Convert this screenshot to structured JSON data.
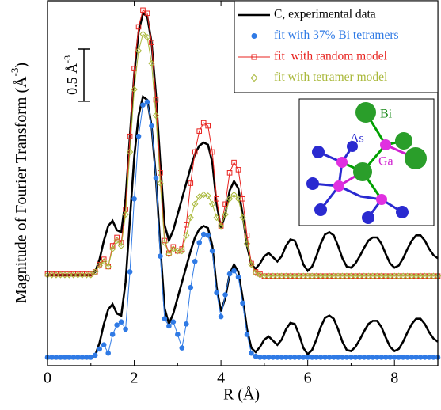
{
  "chart_data": {
    "type": "line",
    "xlabel": "R (Å)",
    "ylabel": "Magnitude of Fourier Transform (Å",
    "ylabel_sup": "-3",
    "ylabel_end": ")",
    "scale_bar_label": "0.5 Å",
    "scale_bar_label_sup": "-3",
    "scale_bar_length": 0.5,
    "xlim": [
      0,
      9
    ],
    "xticks": [
      0,
      2,
      4,
      6,
      8
    ],
    "xminor_ticks": [
      1,
      3,
      5,
      7
    ],
    "ylim": [
      0,
      3.5
    ],
    "legend": "upper right",
    "x": [
      0,
      0.1,
      0.2,
      0.3,
      0.4,
      0.5,
      0.6,
      0.7,
      0.8,
      0.9,
      1,
      1.1,
      1.2,
      1.3,
      1.4,
      1.5,
      1.6,
      1.7,
      1.8,
      1.9,
      2,
      2.1,
      2.2,
      2.3,
      2.4,
      2.5,
      2.6,
      2.7,
      2.8,
      2.9,
      3,
      3.1,
      3.2,
      3.3,
      3.4,
      3.5,
      3.6,
      3.7,
      3.8,
      3.9,
      4,
      4.1,
      4.2,
      4.3,
      4.4,
      4.5,
      4.6,
      4.7,
      4.8,
      4.9,
      5,
      5.1,
      5.2,
      5.3,
      5.4,
      5.5,
      5.6,
      5.7,
      5.8,
      5.9,
      6,
      6.1,
      6.2,
      6.3,
      6.4,
      6.5,
      6.6,
      6.7,
      6.8,
      6.9,
      7,
      7.1,
      7.2,
      7.3,
      7.4,
      7.5,
      7.6,
      7.7,
      7.8,
      7.9,
      8,
      8.1,
      8.2,
      8.3,
      8.4,
      8.5,
      8.6,
      8.7,
      8.8,
      8.9,
      9
    ],
    "series": [
      {
        "name": "C, experimental data",
        "color": "#000000",
        "marker": null,
        "values": [
          0.87,
          0.87,
          0.87,
          0.87,
          0.87,
          0.87,
          0.87,
          0.87,
          0.87,
          0.87,
          0.87,
          0.9,
          1.02,
          1.2,
          1.34,
          1.39,
          1.3,
          1.28,
          1.6,
          2.2,
          2.8,
          3.2,
          3.38,
          3.35,
          3.1,
          2.6,
          1.95,
          1.35,
          1.2,
          1.3,
          1.45,
          1.6,
          1.75,
          1.9,
          2.03,
          2.11,
          2.14,
          2.12,
          1.95,
          1.55,
          1.32,
          1.45,
          1.68,
          1.77,
          1.7,
          1.45,
          1.15,
          0.97,
          0.93,
          0.98,
          1.05,
          1.08,
          1.04,
          1.0,
          1.05,
          1.15,
          1.21,
          1.2,
          1.1,
          0.97,
          0.91,
          0.95,
          1.05,
          1.17,
          1.26,
          1.28,
          1.25,
          1.15,
          1.03,
          0.95,
          0.94,
          0.98,
          1.05,
          1.13,
          1.2,
          1.23,
          1.23,
          1.17,
          1.07,
          0.98,
          0.94,
          0.96,
          1.03,
          1.12,
          1.2,
          1.25,
          1.25,
          1.2,
          1.12,
          1.06,
          1.03
        ]
      },
      {
        "color": "#000000",
        "marker": null,
        "values": [
          0.07,
          0.07,
          0.07,
          0.07,
          0.07,
          0.07,
          0.07,
          0.07,
          0.07,
          0.07,
          0.07,
          0.1,
          0.22,
          0.4,
          0.54,
          0.59,
          0.5,
          0.48,
          0.8,
          1.4,
          2.0,
          2.4,
          2.58,
          2.55,
          2.3,
          1.8,
          1.15,
          0.55,
          0.4,
          0.5,
          0.65,
          0.8,
          0.95,
          1.1,
          1.23,
          1.31,
          1.34,
          1.32,
          1.15,
          0.75,
          0.52,
          0.65,
          0.88,
          0.97,
          0.9,
          0.65,
          0.35,
          0.17,
          0.13,
          0.18,
          0.25,
          0.28,
          0.24,
          0.2,
          0.25,
          0.35,
          0.41,
          0.4,
          0.3,
          0.17,
          0.11,
          0.15,
          0.25,
          0.37,
          0.46,
          0.48,
          0.45,
          0.35,
          0.23,
          0.15,
          0.14,
          0.18,
          0.25,
          0.33,
          0.4,
          0.43,
          0.43,
          0.37,
          0.27,
          0.18,
          0.14,
          0.16,
          0.23,
          0.32,
          0.4,
          0.45,
          0.45,
          0.4,
          0.32,
          0.26,
          0.23
        ]
      },
      {
        "name": "fit with 37% Bi tetramers",
        "color": "#2f7ae5",
        "marker": "circle",
        "values": [
          0.08,
          0.08,
          0.08,
          0.08,
          0.08,
          0.08,
          0.08,
          0.08,
          0.08,
          0.08,
          0.08,
          0.1,
          0.16,
          0.2,
          0.12,
          0.3,
          0.39,
          0.42,
          0.35,
          0.9,
          1.6,
          2.2,
          2.5,
          2.53,
          2.3,
          1.8,
          1.05,
          0.45,
          0.38,
          0.42,
          0.3,
          0.17,
          0.4,
          0.75,
          1.0,
          1.18,
          1.26,
          1.25,
          1.1,
          0.7,
          0.47,
          0.68,
          0.88,
          0.91,
          0.85,
          0.6,
          0.3,
          0.12,
          0.09,
          0.08,
          0.08,
          0.08,
          0.08,
          0.08,
          0.08,
          0.08,
          0.08,
          0.08,
          0.08,
          0.08,
          0.08,
          0.08,
          0.08,
          0.08,
          0.08,
          0.08,
          0.08,
          0.08,
          0.08,
          0.08,
          0.08,
          0.08,
          0.08,
          0.08,
          0.08,
          0.08,
          0.08,
          0.08,
          0.08,
          0.08,
          0.08,
          0.08,
          0.08,
          0.08,
          0.08,
          0.08,
          0.08,
          0.08,
          0.08,
          0.08,
          0.08
        ]
      },
      {
        "name": "fit  with random model",
        "color": "#e8231f",
        "marker": "square",
        "values": [
          0.88,
          0.88,
          0.88,
          0.88,
          0.88,
          0.88,
          0.88,
          0.88,
          0.88,
          0.88,
          0.88,
          0.9,
          0.97,
          1.02,
          0.95,
          1.15,
          1.23,
          1.18,
          1.5,
          2.2,
          2.85,
          3.25,
          3.41,
          3.38,
          3.1,
          2.55,
          1.85,
          1.2,
          1.08,
          1.14,
          1.1,
          1.12,
          1.35,
          1.75,
          2.05,
          2.25,
          2.33,
          2.3,
          2.05,
          1.6,
          1.34,
          1.55,
          1.85,
          1.95,
          1.88,
          1.6,
          1.25,
          0.98,
          0.9,
          0.88,
          0.86,
          0.86,
          0.86,
          0.86,
          0.86,
          0.86,
          0.86,
          0.86,
          0.86,
          0.86,
          0.86,
          0.86,
          0.86,
          0.86,
          0.86,
          0.86,
          0.86,
          0.86,
          0.86,
          0.86,
          0.86,
          0.86,
          0.86,
          0.86,
          0.86,
          0.86,
          0.86,
          0.86,
          0.86,
          0.86,
          0.86,
          0.86,
          0.86,
          0.86,
          0.86,
          0.86,
          0.86,
          0.86,
          0.86,
          0.86,
          0.86
        ]
      },
      {
        "name": "fit with tetramer model",
        "color": "#a9b83a",
        "marker": "diamond",
        "values": [
          0.87,
          0.87,
          0.87,
          0.87,
          0.87,
          0.87,
          0.87,
          0.87,
          0.87,
          0.87,
          0.87,
          0.9,
          0.96,
          1.0,
          0.95,
          1.12,
          1.2,
          1.15,
          1.45,
          2.05,
          2.65,
          3.02,
          3.18,
          3.15,
          2.9,
          2.4,
          1.75,
          1.18,
          1.07,
          1.12,
          1.1,
          1.1,
          1.25,
          1.42,
          1.55,
          1.62,
          1.64,
          1.63,
          1.55,
          1.42,
          1.34,
          1.45,
          1.6,
          1.64,
          1.6,
          1.42,
          1.17,
          0.97,
          0.89,
          0.87,
          0.86,
          0.86,
          0.86,
          0.86,
          0.86,
          0.86,
          0.86,
          0.86,
          0.86,
          0.86,
          0.86,
          0.86,
          0.86,
          0.86,
          0.86,
          0.86,
          0.86,
          0.86,
          0.86,
          0.86,
          0.86,
          0.86,
          0.86,
          0.86,
          0.86,
          0.86,
          0.86,
          0.86,
          0.86,
          0.86,
          0.86,
          0.86,
          0.86,
          0.86,
          0.86,
          0.86,
          0.86,
          0.86,
          0.86,
          0.86,
          0.86
        ]
      }
    ]
  },
  "inset": {
    "labels": [
      "Bi",
      "As",
      "Ga"
    ]
  }
}
